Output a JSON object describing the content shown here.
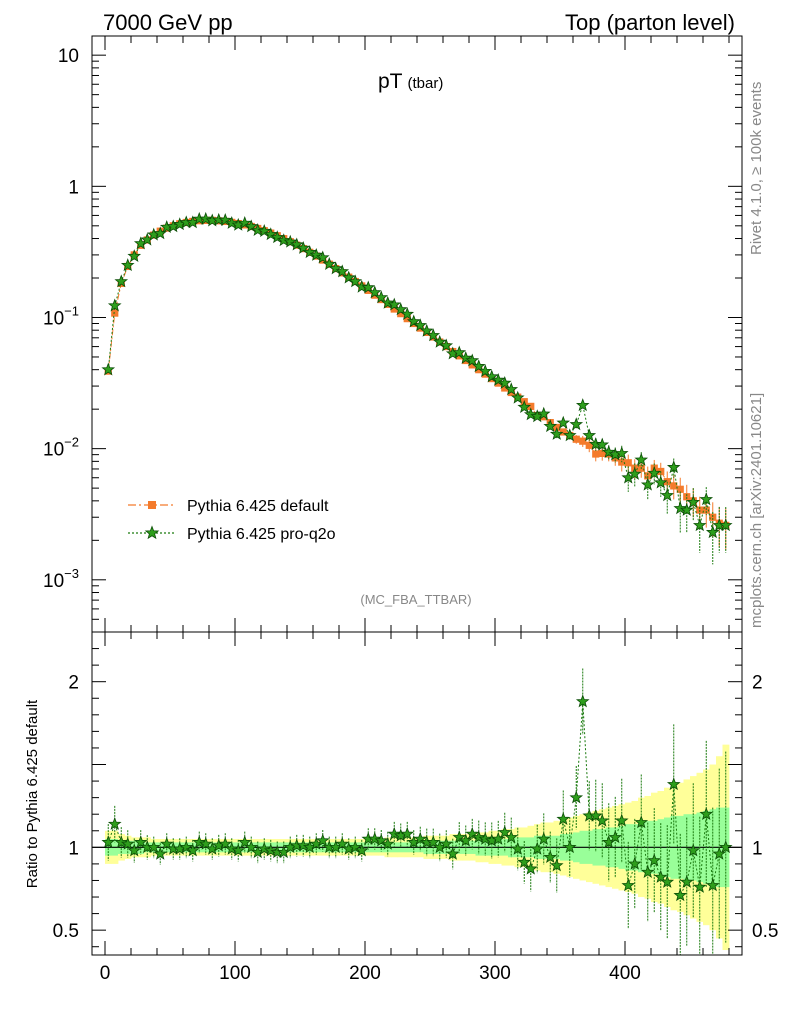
{
  "header": {
    "left": "7000 GeV pp",
    "right": "Top (parton level)"
  },
  "side_labels": {
    "rivet": "Rivet 4.1.0, ≥ 100k events",
    "mcplots": "mcplots.cern.ch [arXiv:2401.10621]"
  },
  "colors": {
    "default": "#f47b2c",
    "proq2o": "#1a7a0f",
    "band_yellow": "#ffff99",
    "band_green": "#99ff99"
  },
  "chart_data": [
    {
      "type": "scatter",
      "title": "pT",
      "title_sub": "(tbar)",
      "analysis": "(MC_FBA_TTBAR)",
      "yscale": "log",
      "xlim": [
        -10,
        490
      ],
      "ylim": [
        0.0004,
        14
      ],
      "yticks": [
        {
          "value": 0.001,
          "base": "10",
          "exp": "−3"
        },
        {
          "value": 0.01,
          "base": "10",
          "exp": "−2"
        },
        {
          "value": 0.1,
          "base": "10",
          "exp": "−1"
        },
        {
          "value": 1,
          "base": "1",
          "exp": ""
        },
        {
          "value": 10,
          "base": "10",
          "exp": ""
        }
      ],
      "legend": [
        "Pythia 6.425 default",
        "Pythia 6.425 pro-q2o"
      ],
      "x": [
        2.5,
        7.5,
        12.5,
        17.5,
        22.5,
        27.5,
        32.5,
        37.5,
        42.5,
        47.5,
        52.5,
        57.5,
        62.5,
        67.5,
        72.5,
        77.5,
        82.5,
        87.5,
        92.5,
        97.5,
        102.5,
        107.5,
        112.5,
        117.5,
        122.5,
        127.5,
        132.5,
        137.5,
        142.5,
        147.5,
        152.5,
        157.5,
        162.5,
        167.5,
        172.5,
        177.5,
        182.5,
        187.5,
        192.5,
        197.5,
        202.5,
        207.5,
        212.5,
        217.5,
        222.5,
        227.5,
        232.5,
        237.5,
        242.5,
        247.5,
        252.5,
        257.5,
        262.5,
        267.5,
        272.5,
        277.5,
        282.5,
        287.5,
        292.5,
        297.5,
        302.5,
        307.5,
        312.5,
        317.5,
        322.5,
        327.5,
        332.5,
        337.5,
        342.5,
        347.5,
        352.5,
        357.5,
        362.5,
        367.5,
        372.5,
        377.5,
        382.5,
        387.5,
        392.5,
        397.5,
        402.5,
        407.5,
        412.5,
        417.5,
        422.5,
        427.5,
        432.5,
        437.5,
        442.5,
        447.5,
        452.5,
        457.5,
        462.5,
        467.5,
        472.5,
        477.5
      ],
      "series": [
        {
          "name": "Pythia 6.425 default",
          "marker": "square",
          "values": [
            0.039,
            0.108,
            0.182,
            0.245,
            0.3,
            0.355,
            0.39,
            0.425,
            0.455,
            0.48,
            0.5,
            0.518,
            0.53,
            0.54,
            0.547,
            0.55,
            0.55,
            0.546,
            0.54,
            0.531,
            0.52,
            0.508,
            0.494,
            0.477,
            0.459,
            0.44,
            0.42,
            0.399,
            0.378,
            0.356,
            0.335,
            0.314,
            0.294,
            0.274,
            0.255,
            0.236,
            0.219,
            0.203,
            0.188,
            0.174,
            0.161,
            0.148,
            0.137,
            0.126,
            0.116,
            0.107,
            0.098,
            0.09,
            0.083,
            0.077,
            0.071,
            0.065,
            0.06,
            0.055,
            0.051,
            0.047,
            0.0435,
            0.04,
            0.037,
            0.0342,
            0.0316,
            0.029,
            0.0268,
            0.0247,
            0.0228,
            0.021,
            0.0178,
            0.0175,
            0.0158,
            0.0145,
            0.0134,
            0.0126,
            0.0118,
            0.0114,
            0.0106,
            0.0091,
            0.0092,
            0.0091,
            0.0085,
            0.0079,
            0.0078,
            0.0071,
            0.0071,
            0.0062,
            0.0071,
            0.0067,
            0.0056,
            0.0052,
            0.0049,
            0.0043,
            0.004,
            0.0034,
            0.0034,
            0.003,
            0.0027,
            0.0026
          ],
          "errors": [
            0.002,
            0.004,
            0.006,
            0.007,
            0.008,
            0.009,
            0.009,
            0.01,
            0.01,
            0.01,
            0.01,
            0.01,
            0.01,
            0.01,
            0.01,
            0.01,
            0.01,
            0.01,
            0.01,
            0.01,
            0.01,
            0.01,
            0.01,
            0.01,
            0.01,
            0.009,
            0.009,
            0.009,
            0.008,
            0.008,
            0.007,
            0.007,
            0.007,
            0.006,
            0.006,
            0.005,
            0.005,
            0.005,
            0.004,
            0.004,
            0.004,
            0.004,
            0.003,
            0.003,
            0.003,
            0.003,
            0.0025,
            0.0023,
            0.0022,
            0.002,
            0.0019,
            0.0018,
            0.0017,
            0.0016,
            0.0015,
            0.0014,
            0.0013,
            0.0012,
            0.0011,
            0.001,
            0.001,
            0.0009,
            0.0009,
            0.0008,
            0.0008,
            0.0008,
            0.0008,
            0.0008,
            0.0008,
            0.0008,
            0.0008,
            0.0008,
            0.0009,
            0.0011,
            0.0012,
            0.0011,
            0.0011,
            0.0011,
            0.0011,
            0.0012,
            0.0012,
            0.0012,
            0.0011,
            0.0011,
            0.0011,
            0.0011,
            0.0011,
            0.0011,
            0.0011,
            0.001,
            0.001,
            0.0009,
            0.0009,
            0.0009,
            0.0009,
            0.0009
          ]
        },
        {
          "name": "Pythia 6.425 pro-q2o",
          "marker": "star",
          "values": [
            0.04,
            0.123,
            0.188,
            0.25,
            0.293,
            0.366,
            0.391,
            0.427,
            0.437,
            0.488,
            0.494,
            0.513,
            0.53,
            0.53,
            0.563,
            0.563,
            0.547,
            0.554,
            0.552,
            0.524,
            0.507,
            0.524,
            0.494,
            0.463,
            0.455,
            0.43,
            0.408,
            0.387,
            0.377,
            0.359,
            0.338,
            0.314,
            0.299,
            0.286,
            0.255,
            0.236,
            0.224,
            0.201,
            0.188,
            0.171,
            0.169,
            0.155,
            0.142,
            0.129,
            0.125,
            0.115,
            0.106,
            0.093,
            0.087,
            0.079,
            0.073,
            0.065,
            0.061,
            0.053,
            0.054,
            0.049,
            0.0469,
            0.0424,
            0.0389,
            0.0354,
            0.0333,
            0.0316,
            0.0283,
            0.0244,
            0.0207,
            0.0182,
            0.0176,
            0.0184,
            0.0148,
            0.0129,
            0.0157,
            0.0126,
            0.0153,
            0.0214,
            0.0126,
            0.0108,
            0.0107,
            0.0094,
            0.009,
            0.0092,
            0.006,
            0.0064,
            0.0082,
            0.0053,
            0.0065,
            0.0055,
            0.0044,
            0.0072,
            0.0035,
            0.0034,
            0.0039,
            0.0026,
            0.0041,
            0.0023,
            0.0026,
            0.0026
          ]
        }
      ]
    },
    {
      "type": "scatter",
      "ylabel": "Ratio to Pythia 6.425 default",
      "xlim": [
        -10,
        490
      ],
      "ylim": [
        0.35,
        2.3
      ],
      "xticks": [
        0,
        100,
        200,
        300,
        400
      ],
      "yticks": [
        0.5,
        1,
        2
      ],
      "reference": 1,
      "ratio": [
        1.03,
        1.14,
        1.03,
        1.02,
        0.98,
        1.03,
        1.0,
        1.0,
        0.96,
        1.02,
        0.99,
        0.99,
        1.0,
        0.98,
        1.03,
        1.02,
        0.99,
        1.01,
        1.02,
        0.99,
        0.98,
        1.03,
        1.0,
        0.97,
        0.99,
        0.98,
        0.97,
        0.97,
        1.0,
        1.01,
        1.01,
        1.0,
        1.02,
        1.04,
        1.0,
        1.0,
        1.02,
        0.99,
        1.0,
        0.98,
        1.05,
        1.05,
        1.04,
        1.02,
        1.08,
        1.07,
        1.08,
        1.03,
        1.05,
        1.03,
        1.03,
        1.0,
        1.02,
        0.96,
        1.06,
        1.04,
        1.08,
        1.06,
        1.05,
        1.04,
        1.05,
        1.09,
        1.06,
        0.99,
        0.91,
        0.87,
        0.99,
        1.05,
        0.94,
        0.89,
        1.17,
        1.0,
        1.3,
        1.88,
        1.19,
        1.19,
        1.16,
        1.03,
        1.06,
        1.16,
        0.77,
        0.9,
        1.15,
        0.85,
        0.92,
        0.82,
        0.79,
        1.38,
        0.71,
        0.79,
        0.98,
        0.76,
        1.2,
        0.77,
        0.96,
        1.0
      ],
      "band_green": [
        0.05,
        0.05,
        0.04,
        0.04,
        0.04,
        0.04,
        0.03,
        0.03,
        0.03,
        0.03,
        0.03,
        0.03,
        0.03,
        0.03,
        0.03,
        0.03,
        0.03,
        0.03,
        0.03,
        0.03,
        0.03,
        0.03,
        0.03,
        0.03,
        0.03,
        0.03,
        0.03,
        0.03,
        0.03,
        0.03,
        0.03,
        0.03,
        0.03,
        0.03,
        0.03,
        0.03,
        0.03,
        0.03,
        0.03,
        0.03,
        0.03,
        0.03,
        0.03,
        0.03,
        0.03,
        0.03,
        0.03,
        0.03,
        0.03,
        0.04,
        0.04,
        0.04,
        0.04,
        0.04,
        0.04,
        0.04,
        0.04,
        0.05,
        0.05,
        0.05,
        0.05,
        0.05,
        0.06,
        0.06,
        0.06,
        0.06,
        0.07,
        0.07,
        0.07,
        0.07,
        0.08,
        0.08,
        0.09,
        0.1,
        0.1,
        0.11,
        0.11,
        0.12,
        0.12,
        0.13,
        0.14,
        0.14,
        0.15,
        0.16,
        0.16,
        0.17,
        0.18,
        0.19,
        0.19,
        0.2,
        0.2,
        0.21,
        0.22,
        0.23,
        0.24,
        0.24
      ],
      "band_yellow": [
        0.1,
        0.1,
        0.08,
        0.07,
        0.06,
        0.06,
        0.06,
        0.05,
        0.05,
        0.05,
        0.05,
        0.05,
        0.05,
        0.05,
        0.05,
        0.05,
        0.05,
        0.05,
        0.05,
        0.05,
        0.05,
        0.05,
        0.05,
        0.05,
        0.05,
        0.05,
        0.05,
        0.05,
        0.05,
        0.05,
        0.05,
        0.05,
        0.05,
        0.05,
        0.05,
        0.05,
        0.05,
        0.05,
        0.05,
        0.05,
        0.05,
        0.05,
        0.05,
        0.06,
        0.06,
        0.06,
        0.06,
        0.06,
        0.06,
        0.07,
        0.07,
        0.07,
        0.07,
        0.08,
        0.08,
        0.08,
        0.08,
        0.09,
        0.09,
        0.1,
        0.1,
        0.11,
        0.11,
        0.12,
        0.12,
        0.13,
        0.14,
        0.15,
        0.15,
        0.16,
        0.17,
        0.18,
        0.19,
        0.2,
        0.21,
        0.22,
        0.23,
        0.24,
        0.25,
        0.26,
        0.27,
        0.28,
        0.3,
        0.31,
        0.33,
        0.34,
        0.36,
        0.38,
        0.39,
        0.41,
        0.43,
        0.45,
        0.47,
        0.5,
        0.55,
        0.62
      ]
    }
  ]
}
